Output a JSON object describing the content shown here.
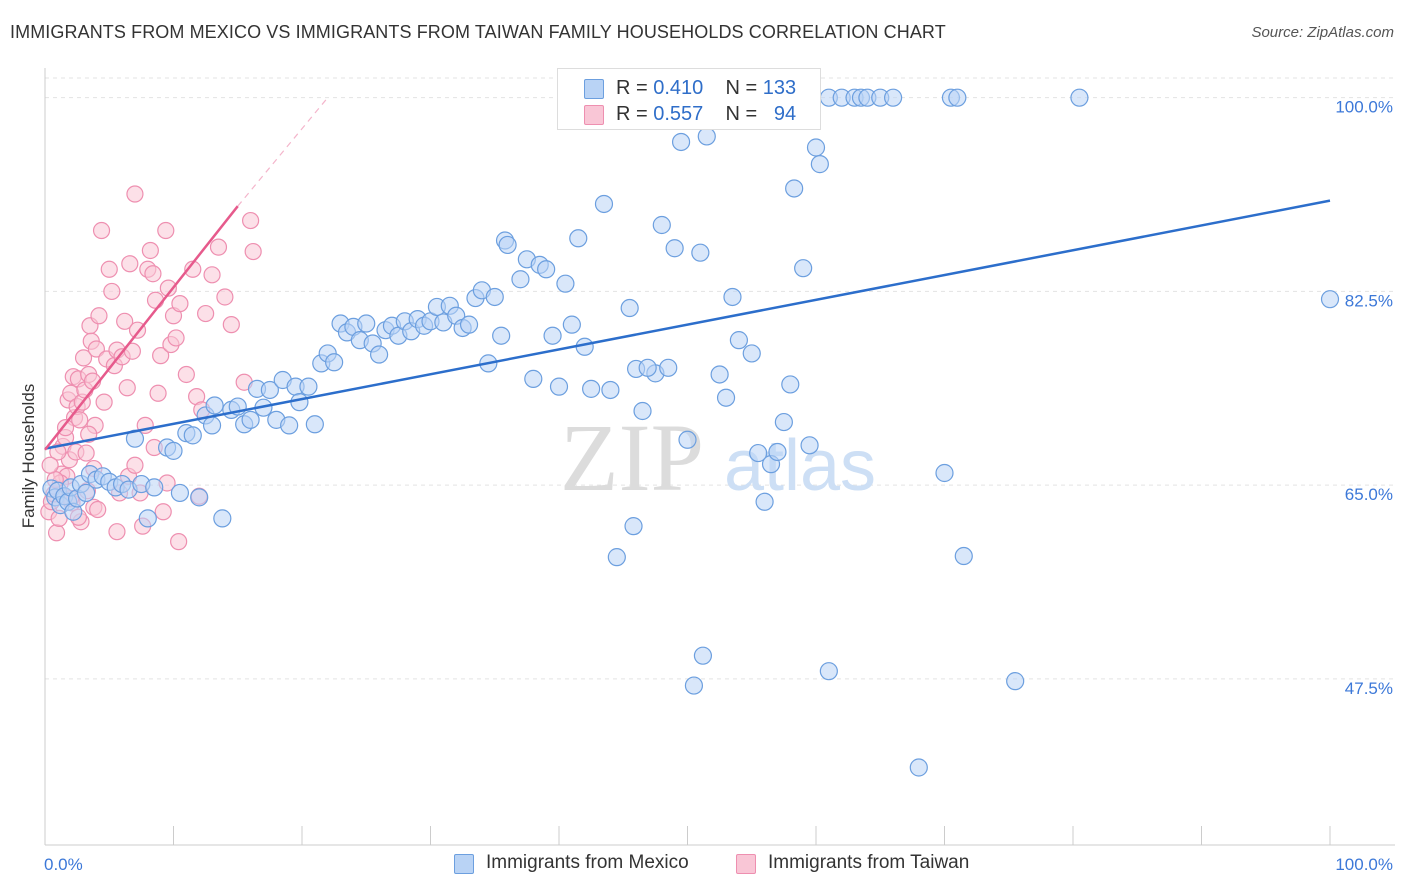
{
  "title": "IMMIGRANTS FROM MEXICO VS IMMIGRANTS FROM TAIWAN FAMILY HOUSEHOLDS CORRELATION CHART",
  "source": "Source: ZipAtlas.com",
  "watermark": {
    "zip": "ZIP",
    "atlas": "atlas"
  },
  "legend": {
    "mexico": {
      "r_label": "R =",
      "r_value": "0.410",
      "n_label": "N =",
      "n_value": "133"
    },
    "taiwan": {
      "r_label": "R =",
      "r_value": "0.557",
      "n_label": "N =",
      "n_value": "94"
    }
  },
  "colors": {
    "mexico_fill": "#b9d3f5",
    "mexico_stroke": "#6c9fdf",
    "mexico_line": "#2c6ecb",
    "taiwan_fill": "#f9c6d6",
    "taiwan_stroke": "#ee8fb0",
    "taiwan_line": "#e65a8c",
    "grid": "#e3e3e3",
    "axis_label": "#3c78d8"
  },
  "chart_data": {
    "type": "scatter",
    "title": "IMMIGRANTS FROM MEXICO VS IMMIGRANTS FROM TAIWAN FAMILY HOUSEHOLDS CORRELATION CHART",
    "xlabel": "",
    "ylabel": "Family Households",
    "xlim": [
      0,
      100
    ],
    "ylim": [
      32.5,
      102.5
    ],
    "x_tick_labels": [
      "0.0%",
      "100.0%"
    ],
    "y_ticks": [
      {
        "value": 47.5,
        "label": "47.5%"
      },
      {
        "value": 65.0,
        "label": "65.0%"
      },
      {
        "value": 82.5,
        "label": "82.5%"
      },
      {
        "value": 100.0,
        "label": "100.0%"
      }
    ],
    "grid": true,
    "legend_position": "top-center",
    "series": [
      {
        "name": "Immigrants from Mexico",
        "r": 0.41,
        "n": 133,
        "trend": {
          "x0": 0,
          "y0": 68.3,
          "x1": 100,
          "y1": 90.7
        },
        "points": [
          [
            0.5,
            64.7
          ],
          [
            0.8,
            63.9
          ],
          [
            1.0,
            64.5
          ],
          [
            1.2,
            63.2
          ],
          [
            1.5,
            64.0
          ],
          [
            1.8,
            63.5
          ],
          [
            2.0,
            64.8
          ],
          [
            2.2,
            62.6
          ],
          [
            2.5,
            63.8
          ],
          [
            2.8,
            65.1
          ],
          [
            3.2,
            64.3
          ],
          [
            3.5,
            66.0
          ],
          [
            4.0,
            65.5
          ],
          [
            4.5,
            65.8
          ],
          [
            5.0,
            65.3
          ],
          [
            5.5,
            64.8
          ],
          [
            6.0,
            65.1
          ],
          [
            6.5,
            64.6
          ],
          [
            7.0,
            69.2
          ],
          [
            7.5,
            65.1
          ],
          [
            8.0,
            62.0
          ],
          [
            8.5,
            64.8
          ],
          [
            9.5,
            68.4
          ],
          [
            10.0,
            68.1
          ],
          [
            10.5,
            64.3
          ],
          [
            11.0,
            69.7
          ],
          [
            11.5,
            69.5
          ],
          [
            12.0,
            63.9
          ],
          [
            12.5,
            71.3
          ],
          [
            13.0,
            70.4
          ],
          [
            13.2,
            72.2
          ],
          [
            13.8,
            62.0
          ],
          [
            14.5,
            71.8
          ],
          [
            15.0,
            72.1
          ],
          [
            15.5,
            70.5
          ],
          [
            16.0,
            70.9
          ],
          [
            16.5,
            73.7
          ],
          [
            17.0,
            72.0
          ],
          [
            17.5,
            73.6
          ],
          [
            18.0,
            70.9
          ],
          [
            18.5,
            74.5
          ],
          [
            19.0,
            70.4
          ],
          [
            19.5,
            73.9
          ],
          [
            19.8,
            72.5
          ],
          [
            20.5,
            73.9
          ],
          [
            21.0,
            70.5
          ],
          [
            21.5,
            76.0
          ],
          [
            22.0,
            76.9
          ],
          [
            22.5,
            76.1
          ],
          [
            23.0,
            79.6
          ],
          [
            23.5,
            78.8
          ],
          [
            24.0,
            79.3
          ],
          [
            24.5,
            78.1
          ],
          [
            25.0,
            79.6
          ],
          [
            25.5,
            77.8
          ],
          [
            26.0,
            76.8
          ],
          [
            26.5,
            79.0
          ],
          [
            27.0,
            79.4
          ],
          [
            27.5,
            78.5
          ],
          [
            28.0,
            79.8
          ],
          [
            28.5,
            78.9
          ],
          [
            29.0,
            80.0
          ],
          [
            29.5,
            79.4
          ],
          [
            30.0,
            79.8
          ],
          [
            30.5,
            81.1
          ],
          [
            31.0,
            79.7
          ],
          [
            31.5,
            81.2
          ],
          [
            32.0,
            80.3
          ],
          [
            32.5,
            79.2
          ],
          [
            33.0,
            79.5
          ],
          [
            33.5,
            81.9
          ],
          [
            34.0,
            82.6
          ],
          [
            34.5,
            76.0
          ],
          [
            35.0,
            82.0
          ],
          [
            35.5,
            78.5
          ],
          [
            35.8,
            87.1
          ],
          [
            36.0,
            86.7
          ],
          [
            37.0,
            83.6
          ],
          [
            37.5,
            85.4
          ],
          [
            38.0,
            74.6
          ],
          [
            38.5,
            84.9
          ],
          [
            39.0,
            84.5
          ],
          [
            39.5,
            78.5
          ],
          [
            40.0,
            73.9
          ],
          [
            40.5,
            83.2
          ],
          [
            41.0,
            79.5
          ],
          [
            41.5,
            87.3
          ],
          [
            42.0,
            77.5
          ],
          [
            42.5,
            73.7
          ],
          [
            43.5,
            90.4
          ],
          [
            44.0,
            73.6
          ],
          [
            45.5,
            81.0
          ],
          [
            46.0,
            75.5
          ],
          [
            46.5,
            71.7
          ],
          [
            47.5,
            75.1
          ],
          [
            48.0,
            88.5
          ],
          [
            48.5,
            75.6
          ],
          [
            49.0,
            86.4
          ],
          [
            49.5,
            96.0
          ],
          [
            50.0,
            69.1
          ],
          [
            51.0,
            86.0
          ],
          [
            51.5,
            96.5
          ],
          [
            52.0,
            100.0
          ],
          [
            52.5,
            75.0
          ],
          [
            53.0,
            72.9
          ],
          [
            53.5,
            82.0
          ],
          [
            54.0,
            78.1
          ],
          [
            55.0,
            76.9
          ],
          [
            55.5,
            67.9
          ],
          [
            56.5,
            66.9
          ],
          [
            57.0,
            68.0
          ],
          [
            57.5,
            70.7
          ],
          [
            58.0,
            74.1
          ],
          [
            58.3,
            91.8
          ],
          [
            59.0,
            84.6
          ],
          [
            59.5,
            68.6
          ],
          [
            60.0,
            95.5
          ],
          [
            60.3,
            94.0
          ],
          [
            61.0,
            100.0
          ],
          [
            62.0,
            100.0
          ],
          [
            63.0,
            100.0
          ],
          [
            63.5,
            100.0
          ],
          [
            64.0,
            100.0
          ],
          [
            65.0,
            100.0
          ],
          [
            66.0,
            100.0
          ],
          [
            70.5,
            100.0
          ],
          [
            71.0,
            100.0
          ],
          [
            80.5,
            100.0
          ],
          [
            100.0,
            81.8
          ],
          [
            56.0,
            63.5
          ],
          [
            44.5,
            58.5
          ],
          [
            45.8,
            61.3
          ],
          [
            50.5,
            46.9
          ],
          [
            51.2,
            49.6
          ],
          [
            61.0,
            48.2
          ],
          [
            75.5,
            47.3
          ],
          [
            68.0,
            39.5
          ],
          [
            71.5,
            58.6
          ],
          [
            70.0,
            66.1
          ],
          [
            46.9,
            75.6
          ]
        ]
      },
      {
        "name": "Immigrants from Taiwan",
        "r": 0.557,
        "n": 94,
        "trend": {
          "x0": 0,
          "y0": 68.2,
          "x1": 15,
          "y1": 90.2,
          "dash_to": {
            "x": 22,
            "y": 100.0
          }
        },
        "points": [
          [
            0.3,
            62.6
          ],
          [
            0.5,
            63.5
          ],
          [
            0.7,
            64.2
          ],
          [
            0.9,
            60.7
          ],
          [
            1.1,
            62.0
          ],
          [
            1.3,
            66.0
          ],
          [
            1.4,
            68.5
          ],
          [
            1.5,
            64.0
          ],
          [
            1.6,
            69.3
          ],
          [
            1.7,
            65.8
          ],
          [
            1.8,
            72.7
          ],
          [
            1.9,
            67.3
          ],
          [
            2.0,
            73.3
          ],
          [
            2.1,
            63.4
          ],
          [
            2.2,
            74.8
          ],
          [
            2.3,
            71.1
          ],
          [
            2.4,
            68.0
          ],
          [
            2.5,
            72.1
          ],
          [
            2.6,
            74.6
          ],
          [
            2.7,
            70.9
          ],
          [
            2.8,
            61.7
          ],
          [
            2.9,
            72.5
          ],
          [
            3.0,
            76.5
          ],
          [
            3.1,
            73.6
          ],
          [
            3.2,
            67.9
          ],
          [
            3.3,
            64.5
          ],
          [
            3.4,
            75.0
          ],
          [
            3.5,
            79.4
          ],
          [
            3.6,
            78.0
          ],
          [
            3.7,
            74.4
          ],
          [
            3.8,
            66.5
          ],
          [
            3.9,
            70.4
          ],
          [
            4.0,
            77.3
          ],
          [
            4.2,
            80.3
          ],
          [
            4.4,
            88.0
          ],
          [
            4.6,
            72.5
          ],
          [
            4.8,
            76.4
          ],
          [
            5.0,
            84.5
          ],
          [
            5.2,
            82.5
          ],
          [
            5.4,
            75.8
          ],
          [
            5.6,
            77.2
          ],
          [
            5.8,
            64.3
          ],
          [
            6.0,
            76.6
          ],
          [
            6.2,
            79.8
          ],
          [
            6.4,
            73.8
          ],
          [
            6.6,
            85.0
          ],
          [
            6.8,
            77.1
          ],
          [
            7.0,
            91.3
          ],
          [
            7.2,
            79.0
          ],
          [
            7.4,
            64.3
          ],
          [
            7.6,
            61.3
          ],
          [
            7.8,
            70.4
          ],
          [
            8.0,
            84.5
          ],
          [
            8.2,
            86.2
          ],
          [
            8.4,
            84.1
          ],
          [
            8.6,
            81.7
          ],
          [
            8.8,
            73.3
          ],
          [
            9.0,
            76.7
          ],
          [
            9.2,
            62.6
          ],
          [
            9.4,
            88.0
          ],
          [
            9.6,
            82.8
          ],
          [
            9.8,
            77.7
          ],
          [
            10.0,
            80.3
          ],
          [
            10.2,
            78.3
          ],
          [
            10.5,
            81.4
          ],
          [
            11.0,
            75.0
          ],
          [
            11.5,
            84.5
          ],
          [
            12.0,
            64.0
          ],
          [
            12.5,
            80.5
          ],
          [
            13.0,
            84.0
          ],
          [
            13.5,
            86.5
          ],
          [
            14.0,
            82.0
          ],
          [
            14.5,
            79.5
          ],
          [
            1.2,
            65.2
          ],
          [
            2.6,
            62.1
          ],
          [
            3.8,
            63.0
          ],
          [
            0.8,
            65.5
          ],
          [
            1.0,
            68.0
          ],
          [
            6.5,
            65.8
          ],
          [
            8.5,
            68.4
          ],
          [
            9.5,
            65.2
          ],
          [
            11.8,
            73.0
          ],
          [
            4.1,
            62.8
          ],
          [
            5.6,
            60.8
          ],
          [
            0.4,
            66.8
          ],
          [
            2.0,
            63.8
          ],
          [
            3.4,
            69.6
          ],
          [
            7.0,
            66.8
          ],
          [
            10.4,
            59.9
          ],
          [
            12.2,
            71.8
          ],
          [
            15.5,
            74.3
          ],
          [
            16.0,
            88.9
          ],
          [
            16.2,
            86.1
          ],
          [
            1.6,
            70.2
          ]
        ]
      }
    ]
  },
  "bottom_legend": {
    "mexico": "Immigrants from Mexico",
    "taiwan": "Immigrants from Taiwan"
  }
}
